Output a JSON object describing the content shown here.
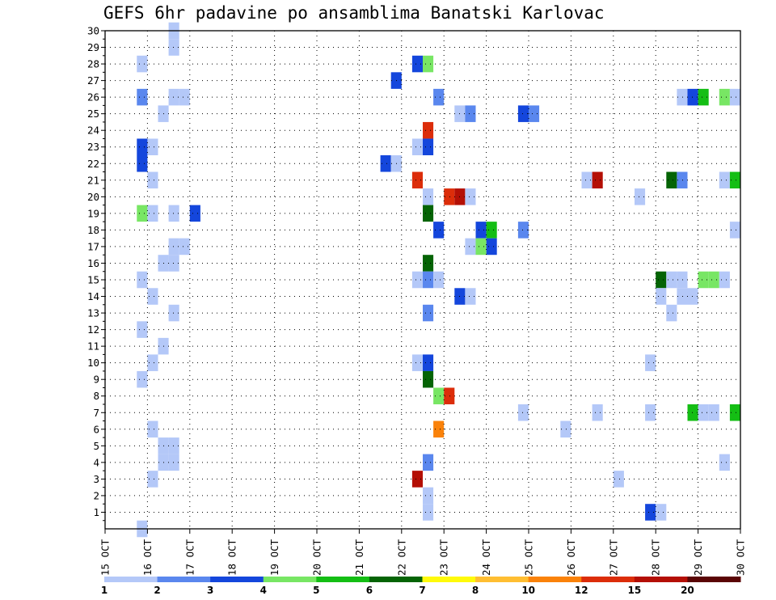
{
  "chart_data": {
    "type": "heatmap",
    "title": "GEFS 6hr padavine po ansamblima Banatski Karlovac",
    "x_tick_labels": [
      "15 OCT",
      "16 OCT",
      "17 OCT",
      "18 OCT",
      "19 OCT",
      "20 OCT",
      "21 OCT",
      "22 OCT",
      "23 OCT",
      "24 OCT",
      "25 OCT",
      "26 OCT",
      "27 OCT",
      "28 OCT",
      "29 OCT",
      "30 OCT"
    ],
    "y_tick_labels": [
      "1",
      "2",
      "3",
      "4",
      "5",
      "6",
      "7",
      "8",
      "9",
      "10",
      "11",
      "12",
      "13",
      "14",
      "15",
      "16",
      "17",
      "18",
      "19",
      "20",
      "21",
      "22",
      "23",
      "24",
      "25",
      "26",
      "27",
      "28",
      "29",
      "30"
    ],
    "x_range_days": [
      15,
      30
    ],
    "y_range_members": [
      0,
      30
    ],
    "steps_per_day": 4,
    "grid": "dotted",
    "colorbar": {
      "labels": [
        "1",
        "2",
        "3",
        "4",
        "5",
        "6",
        "7",
        "8",
        "10",
        "12",
        "15",
        "20"
      ],
      "colors": [
        "#b4c8f8",
        "#5a87ee",
        "#1446dc",
        "#78e664",
        "#14be14",
        "#056405",
        "#fffa0a",
        "#ffbe32",
        "#fa820a",
        "#dc2d0a",
        "#b40f05",
        "#5a0505"
      ],
      "final_color": "#5a0505"
    },
    "cells": [
      [
        16.75,
        30,
        0
      ],
      [
        16.75,
        29,
        0
      ],
      [
        16,
        28,
        0
      ],
      [
        16.75,
        26,
        0
      ],
      [
        17,
        26,
        0
      ],
      [
        16,
        26,
        1
      ],
      [
        16.5,
        25,
        0
      ],
      [
        16.25,
        23,
        0
      ],
      [
        16,
        23,
        2
      ],
      [
        16,
        22,
        2
      ],
      [
        16.25,
        21,
        0
      ],
      [
        17.25,
        19,
        2
      ],
      [
        16,
        19,
        3
      ],
      [
        16.75,
        19,
        0
      ],
      [
        16.25,
        19,
        0
      ],
      [
        16.75,
        17,
        0
      ],
      [
        17,
        17,
        0
      ],
      [
        16.5,
        16,
        0
      ],
      [
        16.75,
        16,
        0
      ],
      [
        16,
        15,
        0
      ],
      [
        16.25,
        14,
        0
      ],
      [
        16.75,
        13,
        0
      ],
      [
        16,
        12,
        0
      ],
      [
        16.5,
        11,
        0
      ],
      [
        16.25,
        10,
        0
      ],
      [
        16,
        9,
        0
      ],
      [
        16.25,
        6,
        0
      ],
      [
        16.75,
        5,
        0
      ],
      [
        16.5,
        5,
        0
      ],
      [
        16.75,
        4,
        0
      ],
      [
        16.5,
        4,
        0
      ],
      [
        16.25,
        3,
        0
      ],
      [
        16,
        0,
        0
      ],
      [
        22.5,
        28,
        2
      ],
      [
        22.75,
        28,
        3
      ],
      [
        22,
        27,
        2
      ],
      [
        23,
        26,
        1
      ],
      [
        23.5,
        25,
        0
      ],
      [
        23.75,
        25,
        1
      ],
      [
        22.75,
        24,
        9
      ],
      [
        22.5,
        23,
        0
      ],
      [
        22.75,
        23,
        2
      ],
      [
        21.75,
        22,
        2
      ],
      [
        22,
        22,
        0
      ],
      [
        22.5,
        21,
        9
      ],
      [
        22.75,
        20,
        0
      ],
      [
        23.25,
        20,
        9
      ],
      [
        23.5,
        20,
        10
      ],
      [
        23.75,
        20,
        0
      ],
      [
        22.75,
        19,
        5
      ],
      [
        23,
        18,
        2
      ],
      [
        24,
        18,
        2
      ],
      [
        24.25,
        18,
        4
      ],
      [
        24.25,
        17,
        2
      ],
      [
        24,
        17,
        3
      ],
      [
        23.75,
        17,
        0
      ],
      [
        22.75,
        16,
        5
      ],
      [
        22.5,
        15,
        0
      ],
      [
        22.75,
        15,
        1
      ],
      [
        23,
        15,
        0
      ],
      [
        23.5,
        14,
        2
      ],
      [
        23.75,
        14,
        0
      ],
      [
        22.75,
        13,
        1
      ],
      [
        22.5,
        10,
        0
      ],
      [
        22.75,
        10,
        2
      ],
      [
        22.75,
        9,
        5
      ],
      [
        23,
        8,
        3
      ],
      [
        23.25,
        8,
        9
      ],
      [
        23,
        6,
        8
      ],
      [
        22.75,
        4,
        1
      ],
      [
        22.5,
        3,
        10
      ],
      [
        22.75,
        2,
        0
      ],
      [
        22.75,
        1,
        0
      ],
      [
        25,
        25,
        2
      ],
      [
        25.25,
        25,
        1
      ],
      [
        25,
        18,
        1
      ],
      [
        26.5,
        21,
        0
      ],
      [
        26.75,
        21,
        10
      ],
      [
        27.75,
        20,
        0
      ],
      [
        28.75,
        26,
        0
      ],
      [
        29,
        26,
        2
      ],
      [
        29.25,
        26,
        4
      ],
      [
        29.75,
        26,
        3
      ],
      [
        30,
        26,
        0
      ],
      [
        28.5,
        21,
        5
      ],
      [
        28.75,
        21,
        1
      ],
      [
        29.75,
        21,
        0
      ],
      [
        30,
        21,
        4
      ],
      [
        30,
        18,
        0
      ],
      [
        28.25,
        15,
        5
      ],
      [
        28.5,
        15,
        0
      ],
      [
        28.75,
        15,
        0
      ],
      [
        29.25,
        15,
        3
      ],
      [
        29.5,
        15,
        3
      ],
      [
        29.75,
        15,
        0
      ],
      [
        28.25,
        14,
        0
      ],
      [
        28.75,
        14,
        0
      ],
      [
        29,
        14,
        0
      ],
      [
        28.5,
        13,
        0
      ],
      [
        28,
        10,
        0
      ],
      [
        25,
        7,
        0
      ],
      [
        26.75,
        7,
        0
      ],
      [
        28,
        7,
        0
      ],
      [
        29,
        7,
        4
      ],
      [
        29.25,
        7,
        0
      ],
      [
        29.5,
        7,
        0
      ],
      [
        30,
        7,
        4
      ],
      [
        26,
        6,
        0
      ],
      [
        29.75,
        4,
        0
      ],
      [
        27.25,
        3,
        0
      ],
      [
        28,
        1,
        2
      ],
      [
        28.25,
        1,
        0
      ]
    ]
  }
}
